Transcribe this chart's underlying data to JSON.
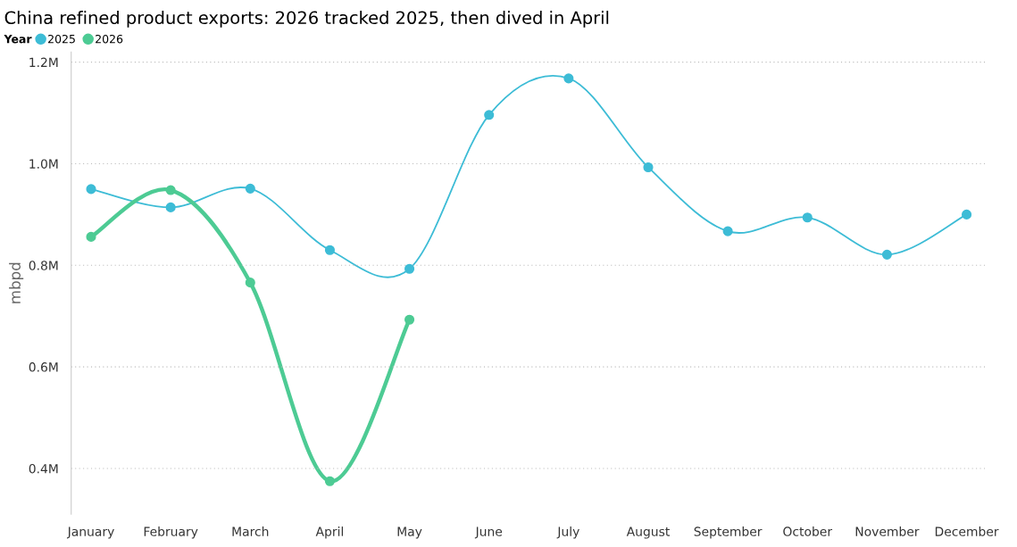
{
  "chart_data": {
    "type": "line",
    "title": "China refined product exports: 2026 tracked 2025, then dived in April",
    "ylabel": "mbpd",
    "legend_title": "Year",
    "legend": "top left",
    "grid": "y",
    "marker": "circle",
    "line_style": "solid",
    "categories": [
      "January",
      "February",
      "March",
      "April",
      "May",
      "June",
      "July",
      "August",
      "September",
      "October",
      "November",
      "December"
    ],
    "ylim": [
      0.31,
      1.22
    ],
    "yticks": [
      {
        "value": 0.4,
        "label": "0.4M"
      },
      {
        "value": 0.6,
        "label": "0.6M"
      },
      {
        "value": 0.8,
        "label": "0.8M"
      },
      {
        "value": 1.0,
        "label": "1.0M"
      },
      {
        "value": 1.2,
        "label": "1.2M"
      }
    ],
    "series": [
      {
        "name": "2025",
        "color": "#3dbcd6",
        "values": [
          0.95,
          0.914,
          0.951,
          0.83,
          0.793,
          1.096,
          1.168,
          0.993,
          0.867,
          0.894,
          0.821,
          0.9
        ]
      },
      {
        "name": "2026",
        "color": "#4dcb94",
        "values": [
          0.856,
          0.948,
          0.766,
          0.375,
          0.693,
          null,
          null,
          null,
          null,
          null,
          null,
          null
        ]
      }
    ]
  }
}
